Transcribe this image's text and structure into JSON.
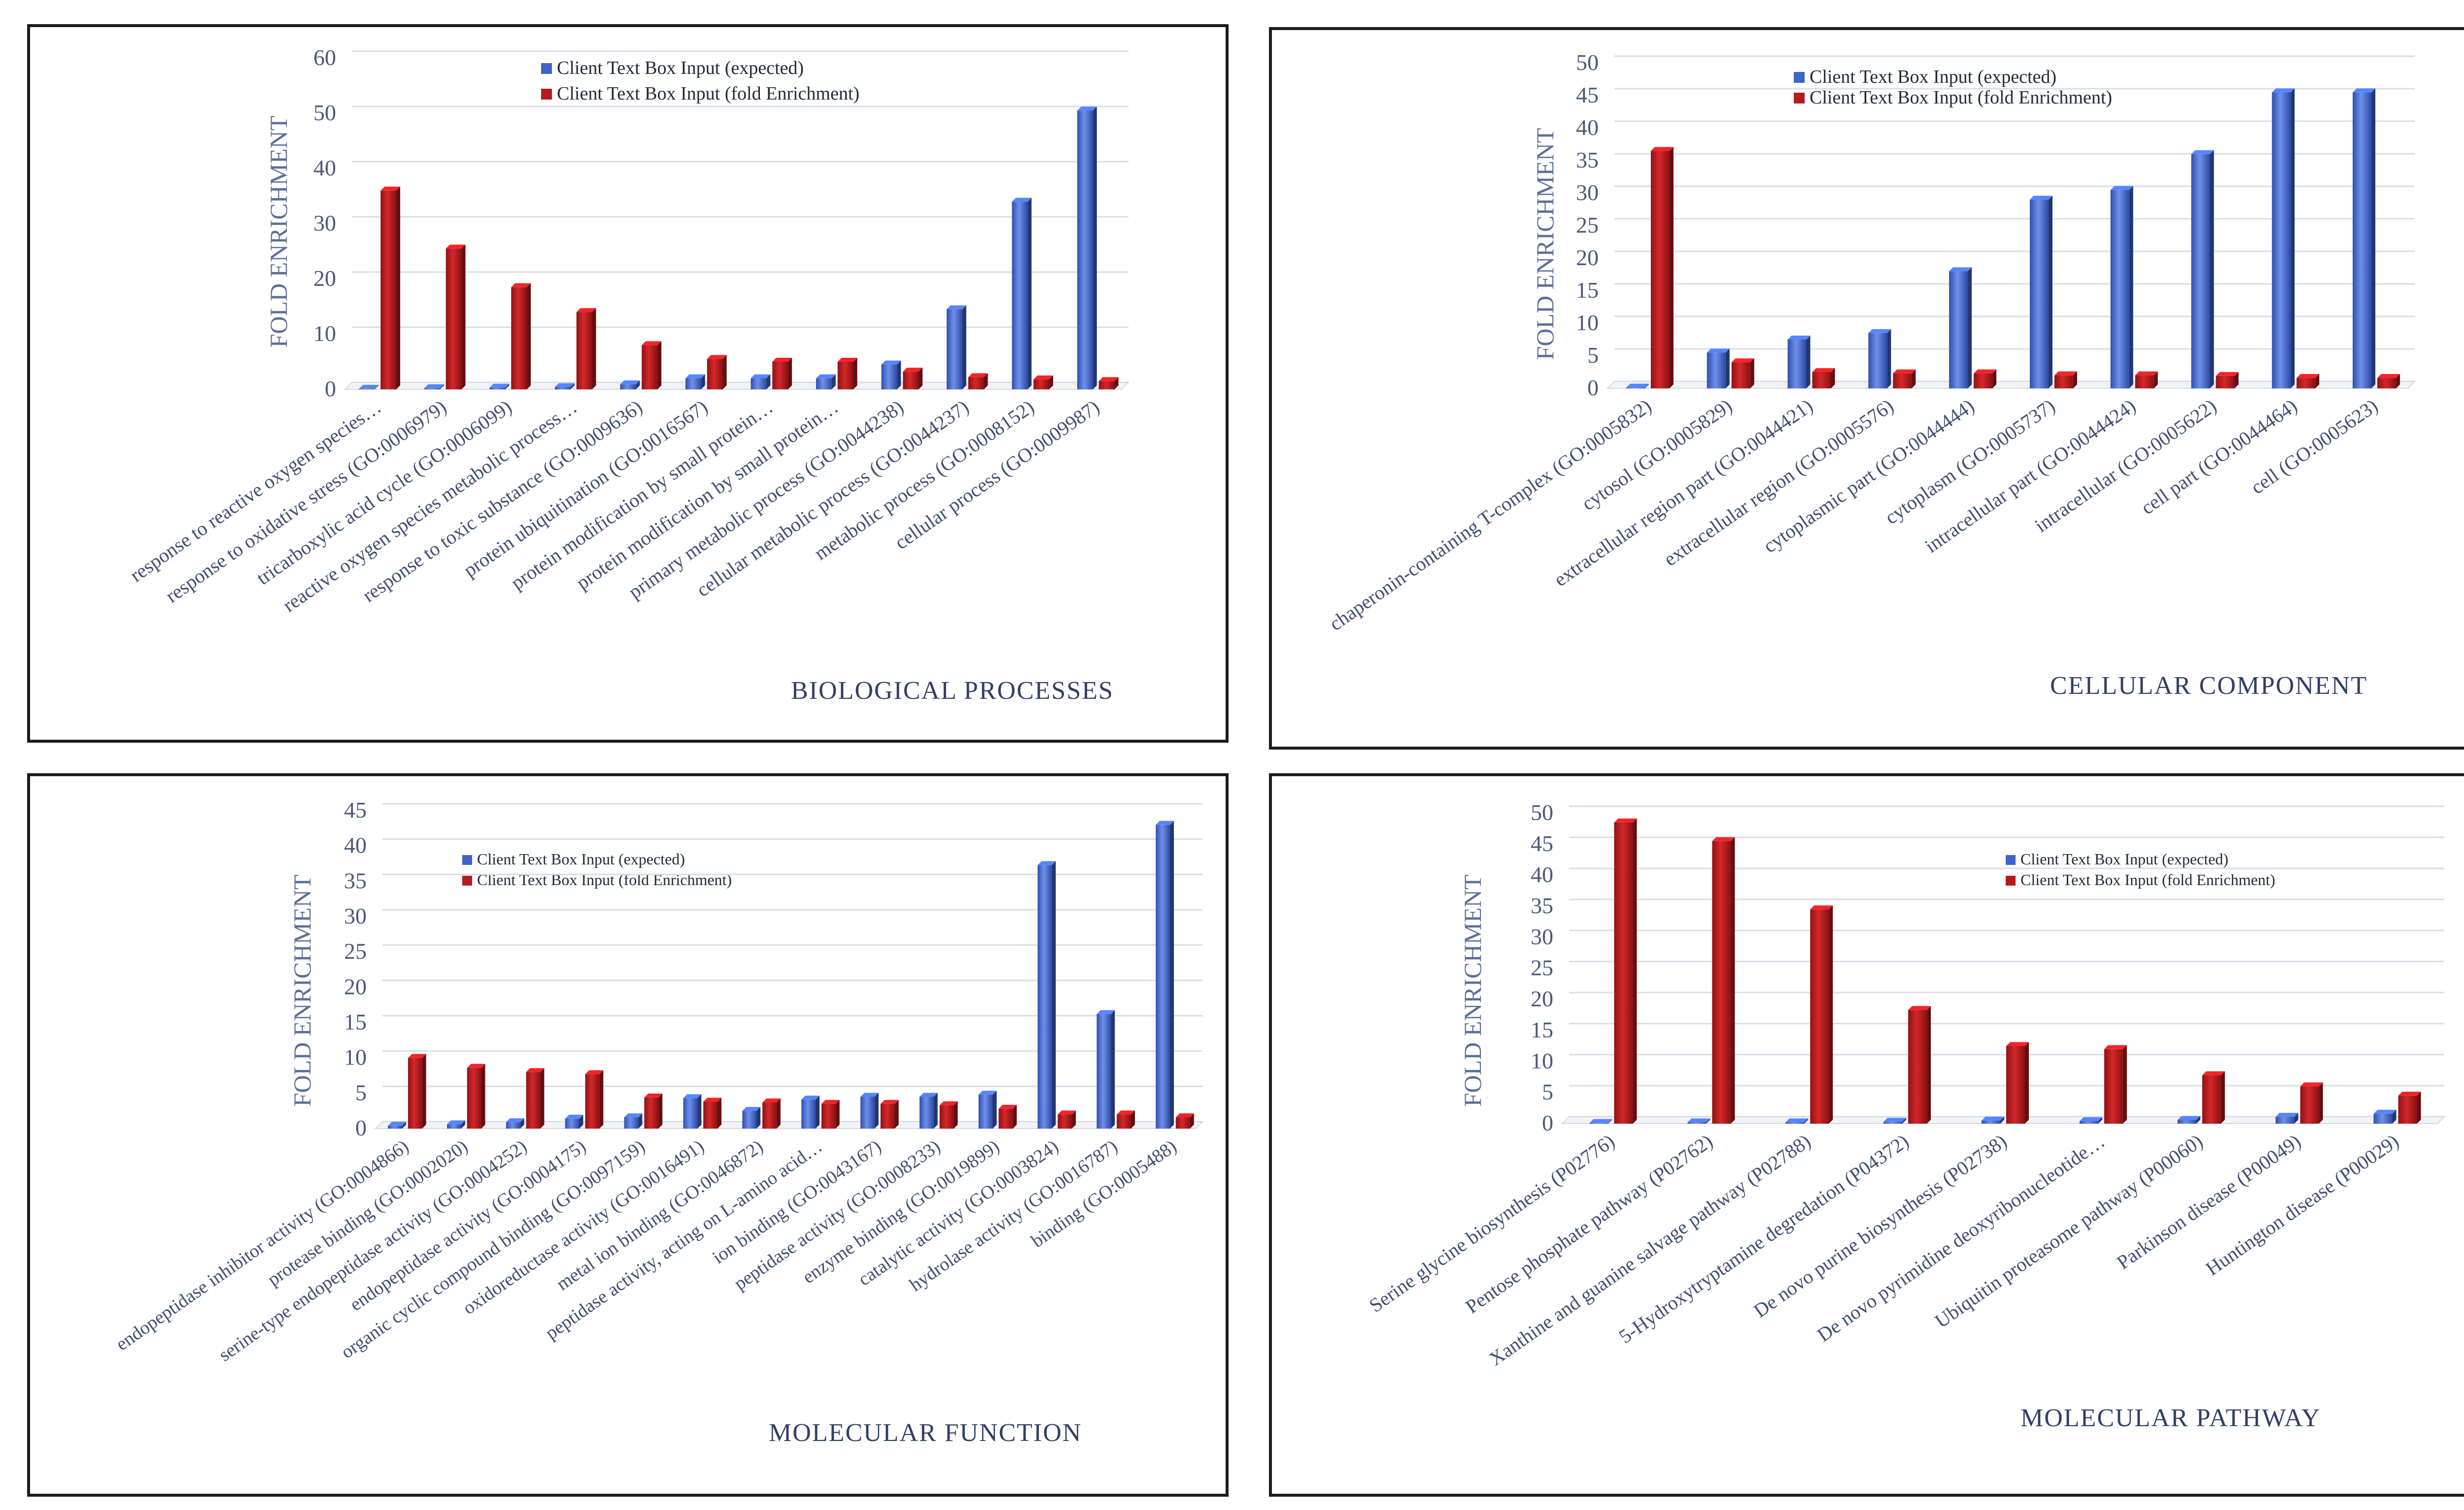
{
  "colors": {
    "expected": "#3f63c9",
    "fold": "#b51b1e"
  },
  "chart_data": [
    {
      "type": "bar",
      "title": "BIOLOGICAL PROCESSES",
      "ylabel": "FOLD ENRICHMENT",
      "xlabel": "",
      "ylim": [
        0,
        60
      ],
      "yticks": [
        0,
        10,
        20,
        30,
        40,
        50,
        60
      ],
      "categories": [
        "response to reactive oxygen species…",
        "response to oxidative stress (GO:0006979)",
        "tricarboxylic acid cycle (GO:0006099)",
        "reactive oxygen species metabolic process…",
        "response to toxic substance (GO:0009636)",
        "protein ubiquitination (GO:0016567)",
        "protein modification by small protein…",
        "protein modification by small protein…",
        "primary metabolic process (GO:0044238)",
        "cellular metabolic process (GO:0044237)",
        "metabolic process (GO:0008152)",
        "cellular process (GO:0009987)"
      ],
      "series": [
        {
          "name": "Client Text Box Input (expected)",
          "values": [
            0.1,
            0.2,
            0.3,
            0.4,
            0.9,
            2,
            2,
            2,
            4.5,
            14.5,
            34,
            50.5
          ]
        },
        {
          "name": "Client Text Box Input (fold Enrichment)",
          "values": [
            36,
            25.5,
            18.5,
            14,
            8,
            5.5,
            5,
            5,
            3.2,
            2.2,
            1.8,
            1.5
          ]
        }
      ]
    },
    {
      "type": "bar",
      "title": "CELLULAR COMPONENT",
      "ylabel": "FOLD ENRICHMENT",
      "xlabel": "",
      "ylim": [
        0,
        50
      ],
      "yticks": [
        0,
        5,
        10,
        15,
        20,
        25,
        30,
        35,
        40,
        45,
        50
      ],
      "categories": [
        "chaperonin-containing T-complex (GO:0005832)",
        "cytosol (GO:0005829)",
        "extracellular region part (GO:0044421)",
        "extracellular region (GO:0005576)",
        "cytoplasmic part (GO:0044444)",
        "cytoplasm (GO:0005737)",
        "intracellular part (GO:0044424)",
        "intracellular (GO:0005622)",
        "cell part (GO:0044464)",
        "cell (GO:0005623)"
      ],
      "series": [
        {
          "name": "Client Text Box Input (expected)",
          "values": [
            0.1,
            5.5,
            7.5,
            8.5,
            18,
            29,
            30.5,
            36,
            45.5,
            45.5
          ]
        },
        {
          "name": "Client Text Box Input (fold Enrichment)",
          "values": [
            36.5,
            4,
            2.5,
            2.3,
            2.3,
            2,
            2,
            1.9,
            1.6,
            1.6
          ]
        }
      ]
    },
    {
      "type": "bar",
      "title": "MOLECULAR FUNCTION",
      "ylabel": "FOLD ENRICHMENT",
      "xlabel": "",
      "ylim": [
        0,
        45
      ],
      "yticks": [
        0,
        5,
        10,
        15,
        20,
        25,
        30,
        35,
        40,
        45
      ],
      "categories": [
        "endopeptidase inhibitor activity (GO:0004866)",
        "protease binding (GO:0002020)",
        "serine-type endopeptidase activity (GO:0004252)",
        "endopeptidase activity (GO:0004175)",
        "organic cyclic compound binding (GO:0097159)",
        "oxidoreductase activity (GO:0016491)",
        "metal ion binding (GO:0046872)",
        "peptidase activity, acting on L-amino acid…",
        "ion binding (GO:0043167)",
        "peptidase activity (GO:0008233)",
        "enzyme binding (GO:0019899)",
        "catalytic activity (GO:0003824)",
        "hydrolase activity (GO:0016787)",
        "binding (GO:0005488)"
      ],
      "series": [
        {
          "name": "Client Text Box Input (expected)",
          "values": [
            0.4,
            0.6,
            0.9,
            1.4,
            1.6,
            4.3,
            2.5,
            4.1,
            4.5,
            4.5,
            4.8,
            37.3,
            16.2,
            43
          ]
        },
        {
          "name": "Client Text Box Input (fold Enrichment)",
          "values": [
            10,
            8.6,
            8,
            7.7,
            4.4,
            3.8,
            3.7,
            3.5,
            3.5,
            3.3,
            2.8,
            2,
            2,
            1.6
          ]
        }
      ]
    },
    {
      "type": "bar",
      "title": "MOLECULAR PATHWAY",
      "ylabel": "FOLD ENRICHMENT",
      "xlabel": "",
      "ylim": [
        0,
        50
      ],
      "yticks": [
        0,
        5,
        10,
        15,
        20,
        25,
        30,
        35,
        40,
        45,
        50
      ],
      "categories": [
        "Serine glycine biosynthesis (P02776)",
        "Pentose phosphate pathway (P02762)",
        "Xanthine and guanine salvage pathway (P02788)",
        "5-Hydroxytryptamine degredation (P04372)",
        "De novo purine biosynthesis (P02738)",
        "De novo pyrimidine deoxyribonucleotide…",
        "Ubiquitin proteasome pathway (P00060)",
        "Parkinson disease (P00049)",
        "Huntington disease (P00029)"
      ],
      "series": [
        {
          "name": "Client Text Box Input (expected)",
          "values": [
            0.1,
            0.2,
            0.2,
            0.3,
            0.5,
            0.4,
            0.6,
            1.1,
            1.6
          ]
        },
        {
          "name": "Client Text Box Input (fold Enrichment)",
          "values": [
            48.5,
            45.5,
            34.5,
            18.3,
            12.5,
            12,
            7.8,
            6,
            4.5
          ]
        }
      ]
    }
  ]
}
